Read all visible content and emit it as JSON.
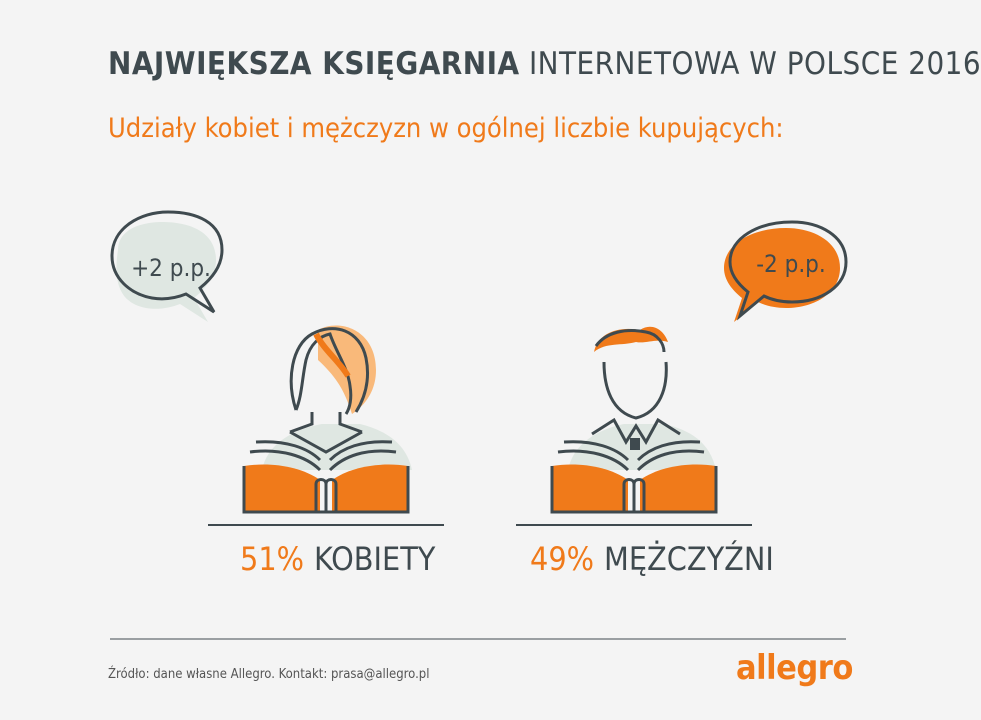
{
  "header": {
    "title_bold": "NAJWIĘKSZA KSIĘGARNIA",
    "title_rest": "INTERNETOWA W POLSCE 2016",
    "subtitle": "Udziały kobiet i mężczyzn w ogólnej liczbie kupujących:"
  },
  "women": {
    "change": "+2 p.p.",
    "percent": "51%",
    "label": "KOBIETY"
  },
  "men": {
    "change": "-2 p.p.",
    "percent": "49%",
    "label": "MĘŻCZYŹNI"
  },
  "footer": {
    "source": "Źródło: dane własne Allegro. Kontakt: prasa@allegro.pl",
    "logo": "allegro"
  },
  "colors": {
    "accent": "#f07a1a",
    "dark": "#3f4a4f",
    "bubble_light": "#dfe7e2",
    "background": "#f4f4f4"
  }
}
